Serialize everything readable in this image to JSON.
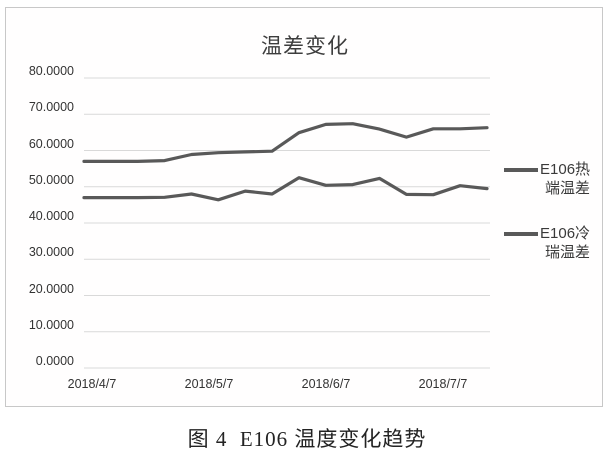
{
  "figure": {
    "caption": "图 4  E106 温度变化趋势"
  },
  "chart_data": {
    "type": "line",
    "title": "温差变化",
    "x_tick_labels": [
      "2018/4/7",
      "2018/5/7",
      "2018/6/7",
      "2018/7/7"
    ],
    "y_tick_labels": [
      "0.0000",
      "10.0000",
      "20.0000",
      "30.0000",
      "40.0000",
      "50.0000",
      "60.0000",
      "70.0000",
      "80.0000"
    ],
    "ylim": [
      0,
      80
    ],
    "y_tick_step": 10,
    "grid": "horizontal",
    "legend_position": "right",
    "line_color": "#595959",
    "gridline_color": "#d9d9d9",
    "x_dates": [
      "2018/4/7",
      "2018/4/14",
      "2018/4/21",
      "2018/4/28",
      "2018/5/5",
      "2018/5/12",
      "2018/5/19",
      "2018/5/26",
      "2018/6/2",
      "2018/6/9",
      "2018/6/16",
      "2018/6/23",
      "2018/6/30",
      "2018/7/7",
      "2018/7/14",
      "2018/7/21"
    ],
    "series": [
      {
        "name": "E106热端温差",
        "legend_lines": [
          "E106热",
          "端温差"
        ],
        "values": [
          57.0,
          57.0,
          57.0,
          57.2,
          58.9,
          59.4,
          59.6,
          59.8,
          64.9,
          67.2,
          67.4,
          65.9,
          63.7,
          66.0,
          66.0,
          66.3
        ]
      },
      {
        "name": "E106冷瑞温差",
        "legend_lines": [
          "E106冷",
          "瑞温差"
        ],
        "values": [
          47.0,
          47.0,
          47.0,
          47.1,
          48.0,
          46.4,
          48.8,
          48.0,
          52.5,
          50.4,
          50.6,
          52.3,
          47.9,
          47.8,
          50.3,
          49.5
        ]
      }
    ]
  }
}
